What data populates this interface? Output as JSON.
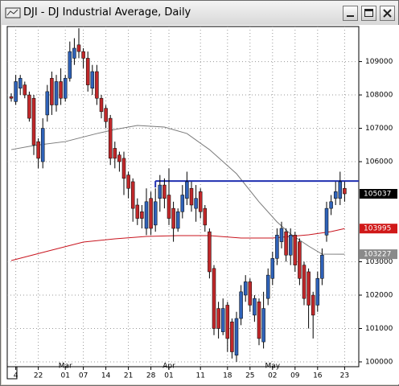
{
  "window_title": "DJI - DJ Industrial Average, Daily",
  "chart_data": {
    "type": "candlestick",
    "categories": [
      null,
      "4",
      null,
      null,
      null,
      null,
      "22",
      null,
      null,
      null,
      null,
      null,
      "01",
      null,
      null,
      null,
      "07",
      null,
      null,
      null,
      null,
      "14",
      null,
      null,
      null,
      null,
      "21",
      null,
      null,
      null,
      null,
      "28",
      null,
      null,
      null,
      "01",
      null,
      null,
      null,
      null,
      null,
      null,
      "11",
      null,
      null,
      null,
      null,
      null,
      "18",
      null,
      null,
      null,
      null,
      "25",
      null,
      null,
      null,
      null,
      "02",
      null,
      null,
      null,
      null,
      "09",
      null,
      null,
      null,
      null,
      "16",
      null,
      null,
      null,
      null,
      null,
      "23"
    ],
    "months": [
      null,
      null,
      null,
      null,
      null,
      null,
      null,
      null,
      null,
      null,
      null,
      null,
      "Mar",
      null,
      null,
      null,
      null,
      null,
      null,
      null,
      null,
      null,
      null,
      null,
      null,
      null,
      null,
      null,
      null,
      null,
      null,
      null,
      null,
      null,
      null,
      "Apr",
      null,
      null,
      null,
      null,
      null,
      null,
      null,
      null,
      null,
      null,
      null,
      null,
      null,
      null,
      null,
      null,
      null,
      null,
      null,
      null,
      null,
      null,
      "May",
      null,
      null,
      null,
      null,
      null,
      null,
      null,
      null,
      null,
      null,
      null,
      null,
      null,
      null,
      null,
      null
    ],
    "open": [
      107950,
      107800,
      108200,
      108300,
      108000,
      107900,
      106600,
      106000,
      107400,
      108500,
      107700,
      108400,
      107900,
      108500,
      109100,
      109500,
      109300,
      109100,
      108200,
      108700,
      107900,
      107600,
      107300,
      106400,
      106200,
      106100,
      105600,
      105400,
      104700,
      104500,
      104000,
      104900,
      104100,
      104900,
      105300,
      105000,
      104600,
      104000,
      104500,
      104900,
      105200,
      104600,
      105100,
      104600,
      103900,
      102800,
      101600,
      100900,
      101700,
      101200,
      100200,
      101300,
      102000,
      102400,
      101400,
      101800,
      100600,
      101900,
      102500,
      103100,
      103600,
      103900,
      103200,
      103800,
      103600,
      102900,
      102700,
      102000,
      101700,
      102500,
      103800,
      104600,
      104900,
      104900,
      105200
    ],
    "high": [
      108050,
      108600,
      108600,
      108400,
      108100,
      108000,
      106700,
      107300,
      108300,
      108700,
      108600,
      108800,
      108600,
      109600,
      109700,
      110000,
      109400,
      109300,
      108900,
      108900,
      108000,
      107700,
      107400,
      106600,
      106300,
      106300,
      105700,
      105500,
      104900,
      104700,
      105200,
      105100,
      105200,
      105600,
      105500,
      105800,
      104800,
      104600,
      105300,
      105700,
      105400,
      105300,
      105200,
      104700,
      104000,
      102900,
      101800,
      101900,
      101800,
      101300,
      101500,
      102300,
      102600,
      102500,
      102000,
      101900,
      102100,
      102800,
      103300,
      104000,
      104200,
      104000,
      104000,
      103900,
      103700,
      103000,
      102800,
      102100,
      102700,
      103400,
      104800,
      105000,
      105400,
      105700,
      105400
    ],
    "low": [
      107800,
      107700,
      108000,
      107900,
      107200,
      106200,
      105800,
      105800,
      107200,
      107400,
      107500,
      107700,
      107800,
      108400,
      108900,
      109100,
      108800,
      108100,
      108000,
      107700,
      107300,
      107000,
      105900,
      105800,
      105700,
      105000,
      104900,
      104200,
      104100,
      104000,
      103800,
      103800,
      103900,
      104500,
      104600,
      104100,
      103600,
      103900,
      104300,
      104700,
      104500,
      104200,
      104300,
      103900,
      102500,
      100800,
      100700,
      100800,
      100300,
      100100,
      100000,
      101100,
      101800,
      101500,
      101200,
      100500,
      100400,
      101700,
      102300,
      102900,
      103400,
      103000,
      102900,
      102700,
      102300,
      101700,
      101000,
      100700,
      101500,
      102300,
      103600,
      104400,
      104700,
      104700,
      104800
    ],
    "close": [
      107900,
      108400,
      108500,
      108000,
      107300,
      106500,
      106100,
      107000,
      108100,
      107700,
      108400,
      107900,
      108500,
      109300,
      109400,
      109300,
      109100,
      108300,
      108700,
      107900,
      107500,
      107200,
      106100,
      106100,
      106000,
      105500,
      105200,
      104600,
      104300,
      104300,
      104800,
      104000,
      104800,
      105300,
      104900,
      104300,
      104000,
      104500,
      105000,
      105400,
      104700,
      104900,
      104500,
      104100,
      102700,
      101000,
      101000,
      101600,
      100700,
      100300,
      101300,
      102100,
      102400,
      101700,
      101900,
      100700,
      101600,
      102600,
      103100,
      103800,
      104000,
      103200,
      103800,
      102900,
      102500,
      101900,
      101700,
      101400,
      102500,
      103200,
      104600,
      104800,
      105100,
      105400,
      105037
    ],
    "up_color": "#2f62b8",
    "down_color": "#c0282a",
    "overlays": [
      {
        "color": "#7a7a7a",
        "x": [
          0,
          5,
          12,
          19,
          23,
          28,
          34,
          39,
          44,
          50,
          55,
          59,
          62,
          66,
          69,
          74
        ],
        "values": [
          106361,
          106482,
          106602,
          106843,
          106964,
          107084,
          107036,
          106843,
          106361,
          105639,
          104795,
          104193,
          103831,
          103470,
          103229,
          103227
        ]
      },
      {
        "color": "#c8141e",
        "x": [
          0,
          9,
          16,
          23,
          30,
          37,
          44,
          51,
          58,
          66,
          71,
          74
        ],
        "values": [
          103036,
          103349,
          103590,
          103687,
          103759,
          103783,
          103783,
          103711,
          103711,
          103807,
          103904,
          103995
        ]
      }
    ],
    "hline": {
      "value": 105420,
      "from": 32,
      "color": "#1f2fb0"
    },
    "price_labels": [
      {
        "value": 105037,
        "bg": "#000000",
        "fg": "#ffffff"
      },
      {
        "value": 103995,
        "bg": "#d01818",
        "fg": "#ffffff"
      },
      {
        "value": 103227,
        "bg": "#8a8a8a",
        "fg": "#ffffff"
      }
    ],
    "ylim": [
      99855,
      110050
    ],
    "yticks": [
      100000,
      101000,
      102000,
      103000,
      106000,
      107000,
      108000,
      109000
    ],
    "grid": true
  }
}
